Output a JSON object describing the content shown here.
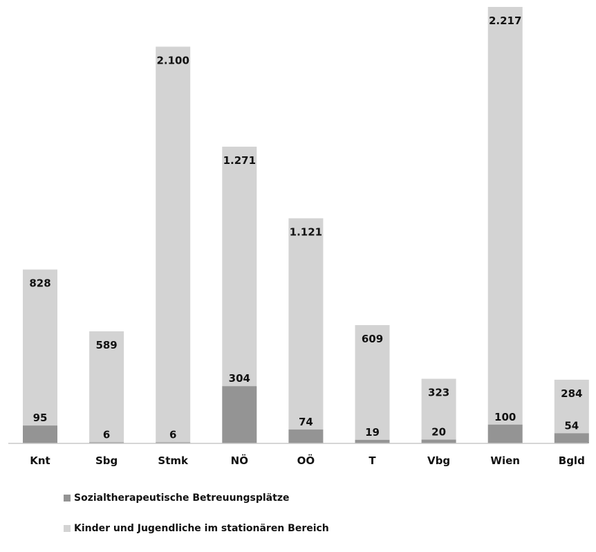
{
  "chart_data": {
    "type": "bar",
    "stacked": true,
    "categories": [
      "Knt",
      "Sbg",
      "Stmk",
      "NÖ",
      "OÖ",
      "T",
      "Vbg",
      "Wien",
      "Bgld"
    ],
    "series": [
      {
        "name": "Sozialtherapeutische Betreuungsplätze",
        "values": [
          95,
          6,
          6,
          304,
          74,
          19,
          20,
          100,
          54
        ],
        "value_labels": [
          "95",
          "6",
          "6",
          "304",
          "74",
          "19",
          "20",
          "100",
          "54"
        ],
        "color": "#949494"
      },
      {
        "name": "Kinder und Jugendliche im stationären Bereich",
        "values": [
          828,
          589,
          2100,
          1271,
          1121,
          609,
          323,
          2217,
          284
        ],
        "value_labels": [
          "828",
          "589",
          "2.100",
          "1.271",
          "1.121",
          "609",
          "323",
          "2.217",
          "284"
        ],
        "color": "#d3d3d3"
      }
    ],
    "ylim": [
      0,
      2600
    ],
    "grid": false,
    "legend": "bottom-left",
    "axis_color": "#c8c8c8"
  }
}
